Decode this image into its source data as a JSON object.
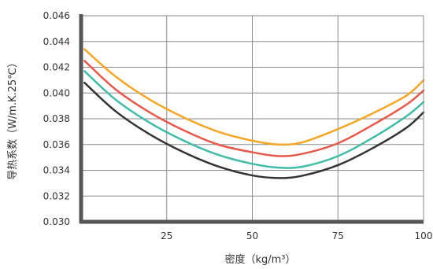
{
  "chart_data": {
    "type": "line",
    "xlabel": "密度（kg/m³）",
    "ylabel": "导热系数（W/m.K.25℃）",
    "xlim": [
      0,
      100
    ],
    "ylim": [
      0.03,
      0.046
    ],
    "x_ticks": [
      "25",
      "50",
      "75",
      "100"
    ],
    "y_ticks": [
      "0.030",
      "0.032",
      "0.034",
      "0.036",
      "0.038",
      "0.040",
      "0.042",
      "0.044",
      "0.046"
    ],
    "grid": true,
    "series": [
      {
        "color": "#f5a623",
        "x": [
          1,
          10,
          20,
          30,
          40,
          50,
          58,
          65,
          75,
          85,
          95,
          100
        ],
        "y": [
          0.0434,
          0.0413,
          0.0395,
          0.0381,
          0.037,
          0.0363,
          0.036,
          0.0362,
          0.0372,
          0.0384,
          0.0398,
          0.041
        ]
      },
      {
        "color": "#e8584a",
        "x": [
          1,
          10,
          20,
          30,
          40,
          50,
          58,
          65,
          75,
          85,
          95,
          100
        ],
        "y": [
          0.0425,
          0.0403,
          0.0385,
          0.0371,
          0.036,
          0.0354,
          0.0351,
          0.0353,
          0.0361,
          0.0375,
          0.0391,
          0.0402
        ]
      },
      {
        "color": "#3fbca6",
        "x": [
          1,
          10,
          20,
          30,
          40,
          50,
          58,
          65,
          75,
          85,
          95,
          100
        ],
        "y": [
          0.0417,
          0.0395,
          0.0377,
          0.0363,
          0.0352,
          0.0345,
          0.0342,
          0.0343,
          0.0351,
          0.0365,
          0.0382,
          0.0393
        ]
      },
      {
        "color": "#333333",
        "x": [
          1,
          10,
          20,
          30,
          40,
          50,
          58,
          65,
          75,
          85,
          95,
          100
        ],
        "y": [
          0.0408,
          0.0386,
          0.0368,
          0.0354,
          0.0343,
          0.0336,
          0.0334,
          0.0336,
          0.0344,
          0.0357,
          0.0373,
          0.0385
        ]
      }
    ]
  }
}
